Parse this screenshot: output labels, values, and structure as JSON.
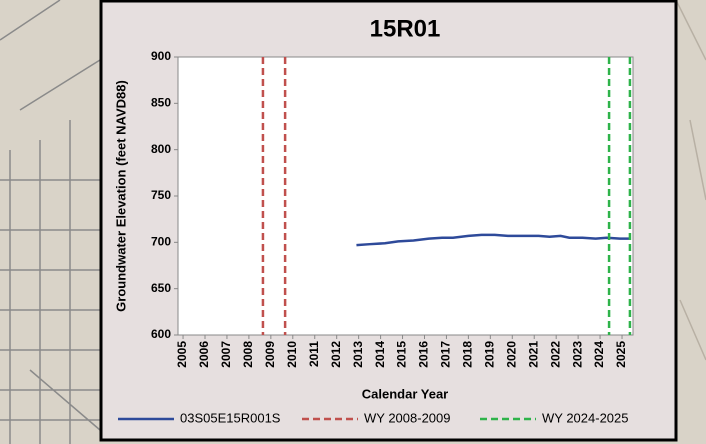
{
  "chart_data": {
    "type": "line",
    "title": "15R01",
    "y_label": "Groundwater Elevation (feet NAVD88)",
    "x_label": "Calendar Year",
    "xlim": [
      2004.77,
      2025.5
    ],
    "xticks": [
      2005,
      2006,
      2007,
      2008,
      2009,
      2010,
      2011,
      2012,
      2013,
      2014,
      2015,
      2016,
      2017,
      2018,
      2019,
      2020,
      2021,
      2022,
      2023,
      2024,
      2025
    ],
    "ylim": [
      600,
      900
    ],
    "yticks": [
      600,
      650,
      700,
      750,
      800,
      850,
      900
    ],
    "series": [
      {
        "name": "03S05E15R001S",
        "color": "#2e4a9a",
        "style": "solid",
        "x": [
          2012.9,
          2013.5,
          2014.2,
          2014.8,
          2015.5,
          2016.2,
          2016.8,
          2017.3,
          2018.0,
          2018.6,
          2019.2,
          2019.8,
          2020.5,
          2021.2,
          2021.7,
          2022.2,
          2022.6,
          2023.2,
          2023.8,
          2024.3,
          2024.9,
          2025.4
        ],
        "values": [
          697,
          698,
          699,
          701,
          702,
          704,
          705,
          705,
          707,
          708,
          708,
          707,
          707,
          707,
          706,
          707,
          705,
          705,
          704,
          705,
          704,
          704
        ]
      },
      {
        "name": "WY 2008-2009",
        "color": "#c0504d",
        "style": "dashed",
        "x": [
          2008.64,
          2009.65
        ]
      },
      {
        "name": "WY 2024-2025",
        "color": "#2eb34a",
        "style": "dashed",
        "x": [
          2024.41,
          2025.36
        ]
      }
    ]
  }
}
